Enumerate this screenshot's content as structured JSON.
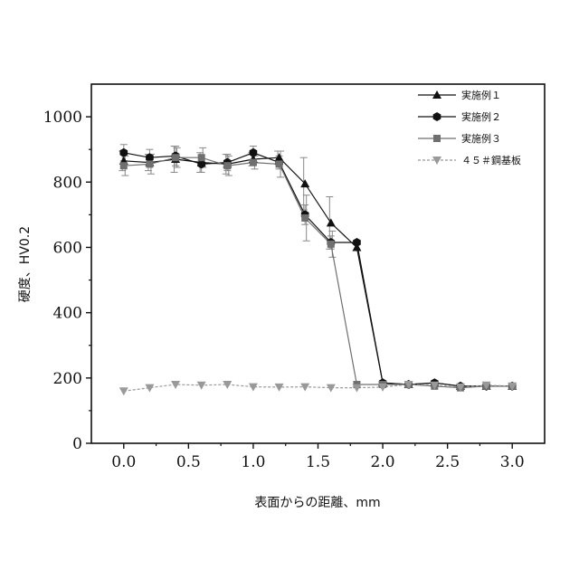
{
  "chart_data": {
    "type": "line",
    "xlabel": "表面からの距離、mm",
    "ylabel": "硬度、HV0.2",
    "xlim": [
      -0.25,
      3.25
    ],
    "ylim": [
      0,
      1100
    ],
    "xticks": [
      0.0,
      0.5,
      1.0,
      1.5,
      2.0,
      2.5,
      3.0
    ],
    "xtick_labels": [
      "0.0",
      "0.5",
      "1.0",
      "1.5",
      "2.0",
      "2.5",
      "3.0"
    ],
    "yticks": [
      0,
      200,
      400,
      600,
      800,
      1000
    ],
    "ytick_labels": [
      "0",
      "200",
      "400",
      "600",
      "800",
      "1000"
    ],
    "legend_position": "top-right",
    "grid": false,
    "series": [
      {
        "name": "実施例１",
        "marker": "triangle-up",
        "color": "#111111",
        "x": [
          0.0,
          0.2,
          0.4,
          0.6,
          0.8,
          1.0,
          1.2,
          1.4,
          1.6,
          1.8,
          2.0,
          2.2,
          2.4,
          2.6,
          2.8,
          3.0
        ],
        "y": [
          865,
          860,
          870,
          860,
          855,
          870,
          875,
          795,
          675,
          600,
          185,
          180,
          185,
          175,
          175,
          175
        ],
        "err": [
          30,
          25,
          40,
          30,
          30,
          20,
          20,
          80,
          80,
          0,
          0,
          0,
          0,
          0,
          0,
          0
        ]
      },
      {
        "name": "実施例２",
        "marker": "hexagon",
        "color": "#111111",
        "x": [
          0.0,
          0.2,
          0.4,
          0.6,
          0.8,
          1.0,
          1.2,
          1.4,
          1.6,
          1.8,
          2.0,
          2.2,
          2.4,
          2.6,
          2.8,
          3.0
        ],
        "y": [
          890,
          875,
          880,
          855,
          860,
          890,
          860,
          700,
          615,
          615,
          185,
          180,
          185,
          175,
          175,
          175
        ],
        "err": [
          25,
          25,
          30,
          25,
          25,
          20,
          20,
          30,
          20,
          0,
          0,
          0,
          0,
          0,
          0,
          0
        ]
      },
      {
        "name": "実施例３",
        "marker": "square",
        "color": "#6f6f6f",
        "x": [
          0.0,
          0.2,
          0.4,
          0.6,
          0.8,
          1.0,
          1.2,
          1.4,
          1.6,
          1.8,
          2.0,
          2.2,
          2.4,
          2.6,
          2.8,
          3.0
        ],
        "y": [
          850,
          855,
          875,
          875,
          850,
          860,
          855,
          690,
          610,
          180,
          180,
          180,
          175,
          170,
          175,
          175
        ],
        "err": [
          30,
          30,
          30,
          30,
          30,
          20,
          40,
          70,
          40,
          0,
          0,
          0,
          0,
          0,
          0,
          0
        ]
      },
      {
        "name": "４５＃鋼基板",
        "marker": "triangle-down",
        "color": "#999999",
        "x": [
          0.0,
          0.2,
          0.4,
          0.6,
          0.8,
          1.0,
          1.2,
          1.4,
          1.6,
          1.8,
          2.0,
          2.2,
          2.4,
          2.6,
          2.8,
          3.0
        ],
        "y": [
          160,
          170,
          180,
          178,
          180,
          173,
          172,
          173,
          170,
          170,
          172,
          180,
          178,
          172,
          178,
          175
        ],
        "err": [
          0,
          0,
          0,
          0,
          0,
          0,
          0,
          0,
          0,
          0,
          0,
          0,
          0,
          0,
          0,
          0
        ]
      }
    ]
  }
}
